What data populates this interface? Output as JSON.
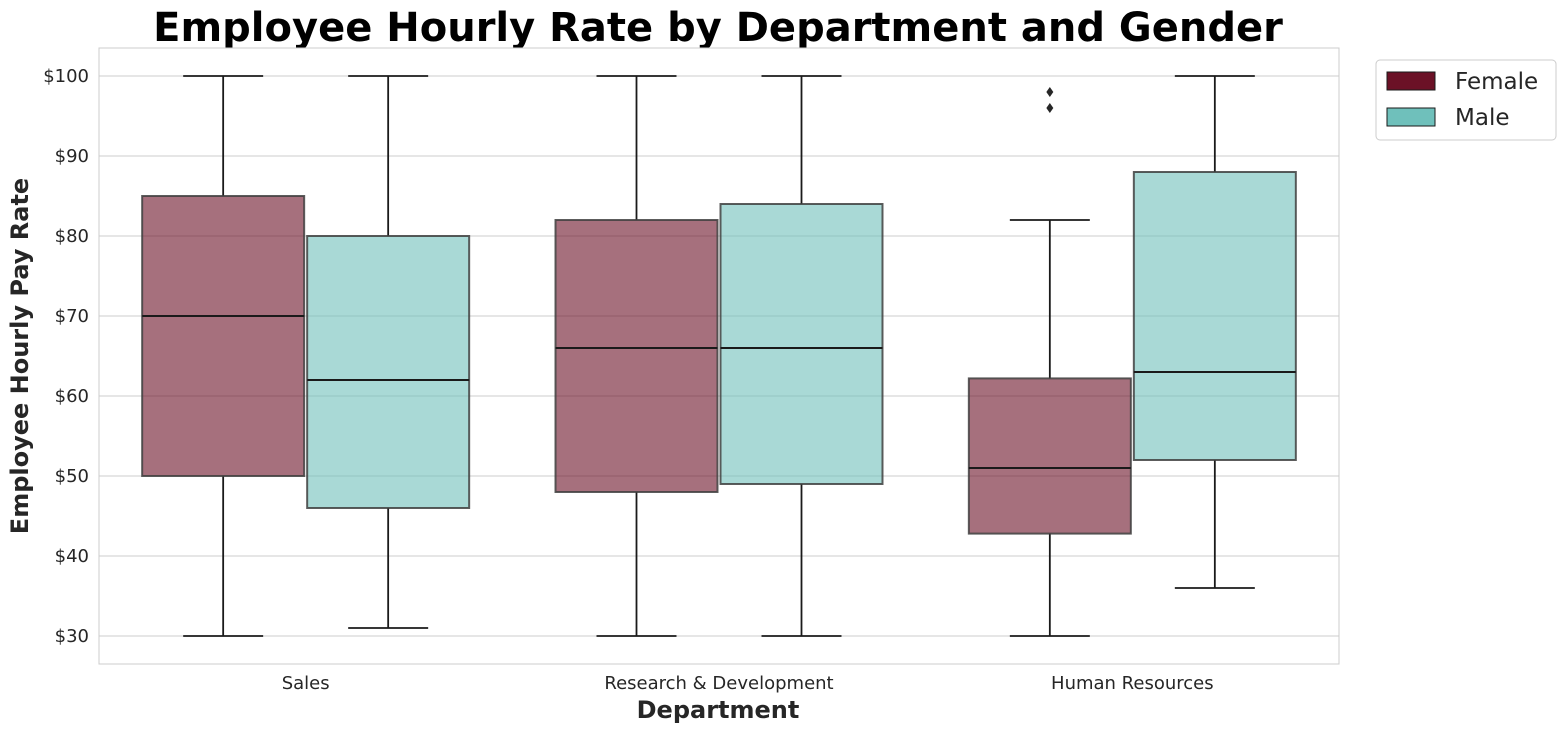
{
  "chart_data": {
    "type": "box",
    "title": "Employee Hourly Rate by Department and Gender",
    "xlabel": "Department",
    "ylabel": "Employee Hourly Pay Rate",
    "categories": [
      "Sales",
      "Research & Development",
      "Human Resources"
    ],
    "y_tick_values": [
      30,
      40,
      50,
      60,
      70,
      80,
      90,
      100
    ],
    "y_tick_labels": [
      "$30",
      "$40",
      "$50",
      "$60",
      "$70",
      "$80",
      "$90",
      "$100"
    ],
    "ylim": [
      26.5,
      103.5
    ],
    "grid": true,
    "legend_position": "outside-top-right",
    "series": [
      {
        "name": "Female",
        "color": "#6b1126",
        "boxes": [
          {
            "min": 30,
            "q1": 50,
            "median": 70,
            "q3": 85,
            "max": 100,
            "outliers": []
          },
          {
            "min": 30,
            "q1": 48,
            "median": 66,
            "q3": 82,
            "max": 100,
            "outliers": []
          },
          {
            "min": 30,
            "q1": 42.8,
            "median": 51,
            "q3": 62.2,
            "max": 82,
            "outliers": [
              96,
              98
            ]
          }
        ]
      },
      {
        "name": "Male",
        "color": "#6fc0bb",
        "boxes": [
          {
            "min": 31,
            "q1": 46,
            "median": 62,
            "q3": 80,
            "max": 100,
            "outliers": []
          },
          {
            "min": 30,
            "q1": 49,
            "median": 66,
            "q3": 84,
            "max": 100,
            "outliers": []
          },
          {
            "min": 36,
            "q1": 52,
            "median": 63,
            "q3": 88,
            "max": 100,
            "outliers": []
          }
        ]
      }
    ]
  }
}
